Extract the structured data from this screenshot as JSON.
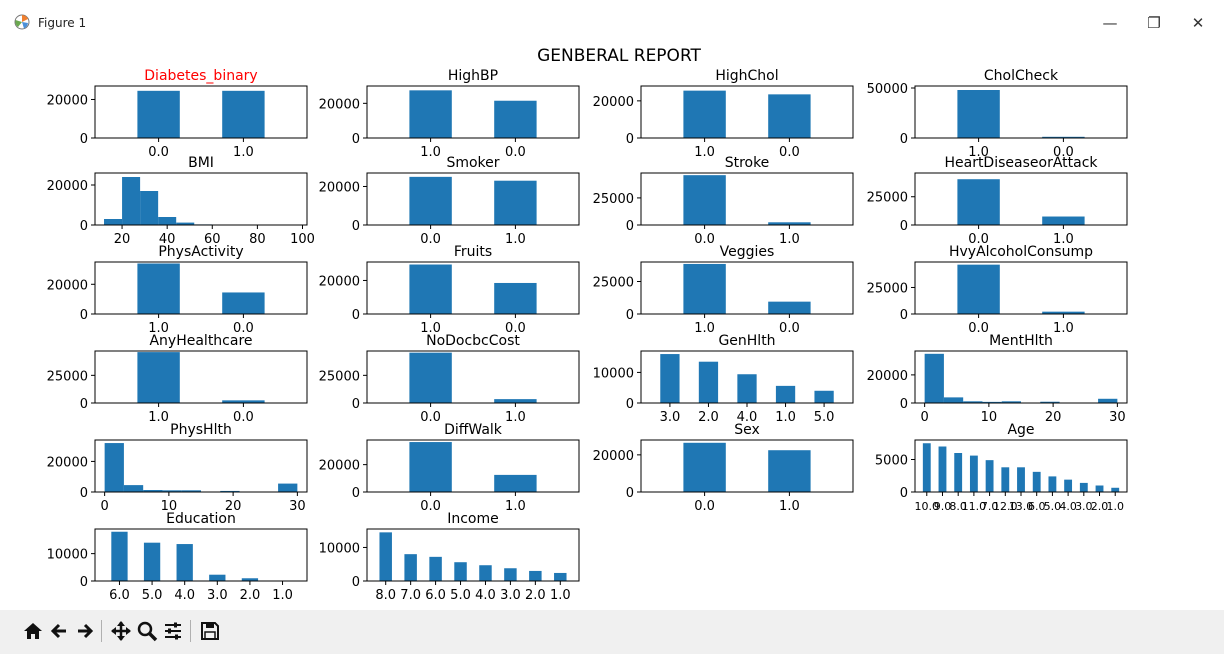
{
  "window": {
    "title": "Figure 1",
    "controls": [
      "—",
      "❐",
      "✕"
    ]
  },
  "figure": {
    "suptitle": "GENBERAL REPORT"
  },
  "toolbar": {
    "buttons": [
      "home-icon",
      "back-icon",
      "forward-icon",
      "pan-icon",
      "zoom-icon",
      "configure-subplots-icon",
      "save-icon"
    ]
  },
  "colors": {
    "bar": "#1f77b4",
    "highlight_title": "#ff0000",
    "toolbar_bg": "#f0f0f0"
  },
  "chart_data": [
    {
      "type": "bar",
      "title": "Diabetes_binary",
      "title_color": "#ff0000",
      "categories": [
        "0.0",
        "1.0"
      ],
      "values": [
        24500,
        24500
      ],
      "ylim": [
        0,
        27000
      ],
      "yticks": [
        0,
        20000
      ]
    },
    {
      "type": "bar",
      "title": "HighBP",
      "categories": [
        "1.0",
        "0.0"
      ],
      "values": [
        27500,
        21500
      ],
      "ylim": [
        0,
        30000
      ],
      "yticks": [
        0,
        20000
      ]
    },
    {
      "type": "bar",
      "title": "HighChol",
      "categories": [
        "1.0",
        "0.0"
      ],
      "values": [
        25500,
        23500
      ],
      "ylim": [
        0,
        28000
      ],
      "yticks": [
        0,
        20000
      ]
    },
    {
      "type": "bar",
      "title": "CholCheck",
      "categories": [
        "1.0",
        "0.0"
      ],
      "values": [
        48000,
        1200
      ],
      "ylim": [
        0,
        52000
      ],
      "yticks": [
        0,
        50000
      ]
    },
    {
      "type": "histogram",
      "title": "BMI",
      "bins": [
        [
          12,
          20,
          3000
        ],
        [
          20,
          28,
          24000
        ],
        [
          28,
          36,
          17000
        ],
        [
          36,
          44,
          4000
        ],
        [
          44,
          52,
          1200
        ],
        [
          52,
          60,
          300
        ],
        [
          60,
          68,
          100
        ],
        [
          68,
          76,
          50
        ],
        [
          76,
          84,
          30
        ],
        [
          84,
          92,
          20
        ],
        [
          92,
          98,
          10
        ]
      ],
      "xlim": [
        8,
        102
      ],
      "xticks": [
        20,
        40,
        60,
        80,
        100
      ],
      "ylim": [
        0,
        26000
      ],
      "yticks": [
        0,
        20000
      ]
    },
    {
      "type": "bar",
      "title": "Smoker",
      "categories": [
        "0.0",
        "1.0"
      ],
      "values": [
        25000,
        23000
      ],
      "ylim": [
        0,
        27000
      ],
      "yticks": [
        0,
        20000
      ]
    },
    {
      "type": "bar",
      "title": "Stroke",
      "categories": [
        "0.0",
        "1.0"
      ],
      "values": [
        46000,
        2500
      ],
      "ylim": [
        0,
        48000
      ],
      "yticks": [
        0,
        25000
      ]
    },
    {
      "type": "bar",
      "title": "HeartDiseaseorAttack",
      "categories": [
        "0.0",
        "1.0"
      ],
      "values": [
        40500,
        7500
      ],
      "ylim": [
        0,
        46000
      ],
      "yticks": [
        0,
        25000
      ]
    },
    {
      "type": "bar",
      "title": "PhysActivity",
      "categories": [
        "1.0",
        "0.0"
      ],
      "values": [
        34000,
        14500
      ],
      "ylim": [
        0,
        35000
      ],
      "yticks": [
        0,
        20000
      ]
    },
    {
      "type": "bar",
      "title": "Fruits",
      "categories": [
        "1.0",
        "0.0"
      ],
      "values": [
        29500,
        18500
      ],
      "ylim": [
        0,
        31000
      ],
      "yticks": [
        0,
        20000
      ]
    },
    {
      "type": "bar",
      "title": "Veggies",
      "categories": [
        "1.0",
        "0.0"
      ],
      "values": [
        38500,
        9500
      ],
      "ylim": [
        0,
        40000
      ],
      "yticks": [
        0,
        25000
      ]
    },
    {
      "type": "bar",
      "title": "HvyAlcoholConsump",
      "categories": [
        "0.0",
        "1.0"
      ],
      "values": [
        46500,
        2200
      ],
      "ylim": [
        0,
        49000
      ],
      "yticks": [
        0,
        25000
      ]
    },
    {
      "type": "bar",
      "title": "AnyHealthcare",
      "categories": [
        "1.0",
        "0.0"
      ],
      "values": [
        46000,
        2400
      ],
      "ylim": [
        0,
        47000
      ],
      "yticks": [
        0,
        25000
      ]
    },
    {
      "type": "bar",
      "title": "NoDocbcCost",
      "categories": [
        "0.0",
        "1.0"
      ],
      "values": [
        45500,
        3500
      ],
      "ylim": [
        0,
        47000
      ],
      "yticks": [
        0,
        25000
      ]
    },
    {
      "type": "bar",
      "title": "GenHlth",
      "categories": [
        "3.0",
        "2.0",
        "4.0",
        "1.0",
        "5.0"
      ],
      "values": [
        16000,
        13500,
        9400,
        5600,
        4000
      ],
      "ylim": [
        0,
        17000
      ],
      "yticks": [
        0,
        10000
      ]
    },
    {
      "type": "histogram",
      "title": "MentHlth",
      "bins": [
        [
          0,
          3,
          35000
        ],
        [
          3,
          6,
          4000
        ],
        [
          6,
          9,
          1200
        ],
        [
          9,
          12,
          800
        ],
        [
          12,
          15,
          1200
        ],
        [
          15,
          18,
          300
        ],
        [
          18,
          21,
          900
        ],
        [
          21,
          24,
          150
        ],
        [
          24,
          27,
          200
        ],
        [
          27,
          30,
          3000
        ]
      ],
      "xlim": [
        -1.5,
        31.5
      ],
      "xticks": [
        0,
        10,
        20,
        30
      ],
      "ylim": [
        0,
        37000
      ],
      "yticks": [
        0,
        20000
      ]
    },
    {
      "type": "histogram",
      "title": "PhysHlth",
      "bins": [
        [
          0,
          3,
          32000
        ],
        [
          3,
          6,
          4500
        ],
        [
          6,
          9,
          1300
        ],
        [
          9,
          12,
          1100
        ],
        [
          12,
          15,
          1100
        ],
        [
          15,
          18,
          300
        ],
        [
          18,
          21,
          700
        ],
        [
          21,
          24,
          150
        ],
        [
          24,
          27,
          200
        ],
        [
          27,
          30,
          5500
        ]
      ],
      "xlim": [
        -1.5,
        31.5
      ],
      "xticks": [
        0,
        10,
        20,
        30
      ],
      "ylim": [
        0,
        34000
      ],
      "yticks": [
        0,
        20000
      ]
    },
    {
      "type": "bar",
      "title": "DiffWalk",
      "categories": [
        "0.0",
        "1.0"
      ],
      "values": [
        36500,
        12500
      ],
      "ylim": [
        0,
        38000
      ],
      "yticks": [
        0,
        20000
      ]
    },
    {
      "type": "bar",
      "title": "Sex",
      "categories": [
        "0.0",
        "1.0"
      ],
      "values": [
        26500,
        22500
      ],
      "ylim": [
        0,
        28000
      ],
      "yticks": [
        0,
        20000
      ]
    },
    {
      "type": "bar",
      "title": "Age",
      "categories": [
        "10.0",
        "9.0",
        "8.0",
        "11.0",
        "7.0",
        "12.0",
        "13.0",
        "6.0",
        "5.0",
        "4.0",
        "3.0",
        "2.0",
        "1.0"
      ],
      "values": [
        7500,
        7000,
        6000,
        5600,
        4900,
        3800,
        3800,
        3100,
        2400,
        1900,
        1400,
        1000,
        650
      ],
      "ylim": [
        0,
        8000
      ],
      "yticks": [
        0,
        5000
      ]
    },
    {
      "type": "bar",
      "title": "Education",
      "categories": [
        "6.0",
        "5.0",
        "4.0",
        "3.0",
        "2.0",
        "1.0"
      ],
      "values": [
        18000,
        14000,
        13500,
        2300,
        1000,
        100
      ],
      "ylim": [
        0,
        19000
      ],
      "yticks": [
        0,
        10000
      ]
    },
    {
      "type": "bar",
      "title": "Income",
      "categories": [
        "8.0",
        "7.0",
        "6.0",
        "5.0",
        "4.0",
        "3.0",
        "2.0",
        "1.0"
      ],
      "values": [
        14500,
        8000,
        7200,
        5600,
        4700,
        3800,
        3000,
        2400
      ],
      "ylim": [
        0,
        15500
      ],
      "yticks": [
        0,
        10000
      ]
    }
  ]
}
